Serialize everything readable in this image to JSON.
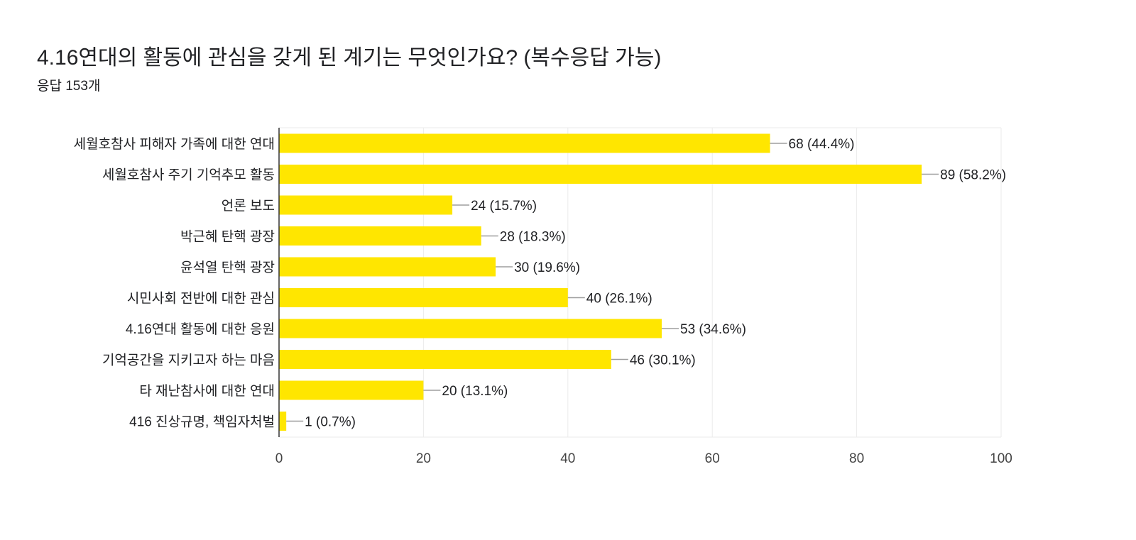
{
  "header": {
    "title": "4.16연대의 활동에 관심을 갖게 된 계기는 무엇인가요? (복수응답 가능)",
    "response_count": "응답 153개"
  },
  "chart_data": {
    "type": "bar",
    "orientation": "horizontal",
    "title": "4.16연대의 활동에 관심을 갖게 된 계기는 무엇인가요? (복수응답 가능)",
    "categories": [
      "세월호참사 피해자 가족에 대한 연대",
      "세월호참사 주기 기억추모 활동",
      "언론 보도",
      "박근혜 탄핵 광장",
      "윤석열 탄핵 광장",
      "시민사회 전반에 대한 관심",
      "4.16연대 활동에 대한 응원",
      "기억공간을 지키고자 하는 마음",
      "타 재난참사에 대한 연대",
      "416 진상규명, 책임자처벌"
    ],
    "values": [
      68,
      89,
      24,
      28,
      30,
      40,
      53,
      46,
      20,
      1
    ],
    "data_labels": [
      "68 (44.4%)",
      "89 (58.2%)",
      "24 (15.7%)",
      "28 (18.3%)",
      "30 (19.6%)",
      "40 (26.1%)",
      "53 (34.6%)",
      "46 (30.1%)",
      "20 (13.1%)",
      "1 (0.7%)"
    ],
    "xlim": [
      0,
      100
    ],
    "xticks": [
      "0",
      "20",
      "40",
      "60",
      "80",
      "100"
    ],
    "grid": true,
    "bar_color": "#FFE600",
    "leader_color": "#9E9E9E",
    "grid_color": "#EBEBEB"
  }
}
